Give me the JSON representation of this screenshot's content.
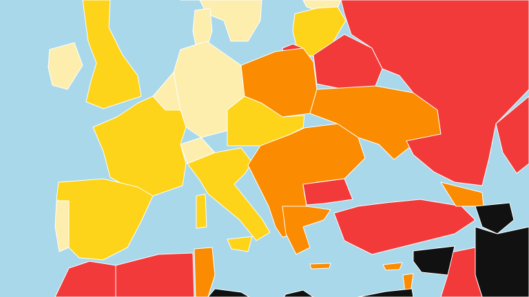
{
  "map": {
    "colors": {
      "sea": "#a9d8ea",
      "level_1": "#fdeeae",
      "level_2": "#fdd419",
      "level_3": "#fb8b00",
      "level_4": "#f23a3a",
      "level_5": "#111111"
    }
  }
}
